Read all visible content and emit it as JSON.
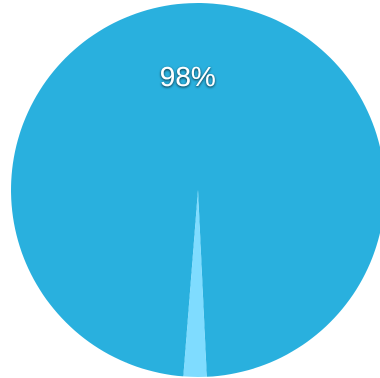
{
  "chart_data": {
    "type": "pie",
    "slices": [
      {
        "value": 98,
        "label": "98%",
        "color": "#29b0de"
      },
      {
        "value": 2,
        "label": "",
        "color": "#7fdcff"
      }
    ]
  }
}
